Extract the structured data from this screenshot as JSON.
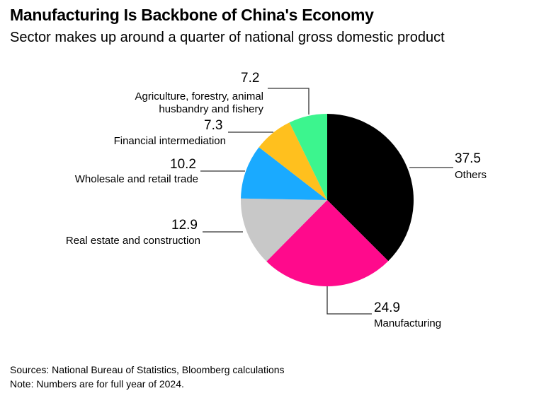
{
  "title": "Manufacturing Is Backbone of China's Economy",
  "subtitle": "Sector makes up around a quarter of national gross domestic product",
  "chart_data": {
    "type": "pie",
    "title": "Manufacturing Is Backbone of China's Economy",
    "subtitle": "Sector makes up around a quarter of national gross domestic product",
    "slices": [
      {
        "label": "Others",
        "value": 37.5,
        "value_text": "37.5",
        "color": "#000000"
      },
      {
        "label": "Manufacturing",
        "value": 24.9,
        "value_text": "24.9",
        "color": "#ff0a8c"
      },
      {
        "label": "Real estate and construction",
        "value": 12.9,
        "value_text": "12.9",
        "color": "#c8c8c8"
      },
      {
        "label": "Wholesale and retail trade",
        "value": 10.2,
        "value_text": "10.2",
        "color": "#1aaaff"
      },
      {
        "label": "Financial intermediation",
        "value": 7.3,
        "value_text": "7.3",
        "color": "#ffc01e"
      },
      {
        "label": "Agriculture, forestry, animal husbandry and fishery",
        "value": 7.2,
        "value_text": "7.2",
        "color": "#3cf58e"
      }
    ],
    "start": "top",
    "direction": "clockwise"
  },
  "agri_label_line1": "Agriculture, forestry, animal",
  "agri_label_line2": "husbandry and fishery",
  "footer": {
    "sources": "Sources: National Bureau of Statistics, Bloomberg calculations",
    "note": "Note: Numbers are for full year of 2024."
  }
}
